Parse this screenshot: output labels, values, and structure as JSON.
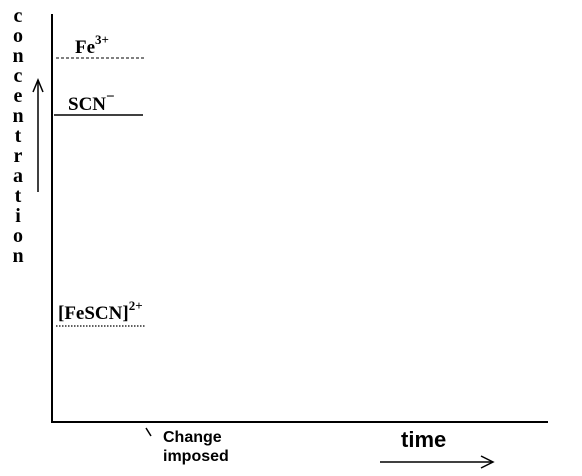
{
  "y_axis": {
    "label_letters": [
      "c",
      "o",
      "n",
      "c",
      "e",
      "n",
      "t",
      "r",
      "a",
      "t",
      "i",
      "o",
      "n"
    ]
  },
  "x_axis": {
    "label": "time"
  },
  "annotation": {
    "line1": "Change",
    "line2": "imposed"
  },
  "species": {
    "fe": {
      "base": "Fe",
      "superscript": "3+"
    },
    "scn": {
      "base": "SCN",
      "superscript": "−"
    },
    "fescn": {
      "base": "[FeSCN]",
      "superscript": "2+"
    }
  },
  "colors": {
    "ink": "#000000",
    "background": "#ffffff"
  }
}
